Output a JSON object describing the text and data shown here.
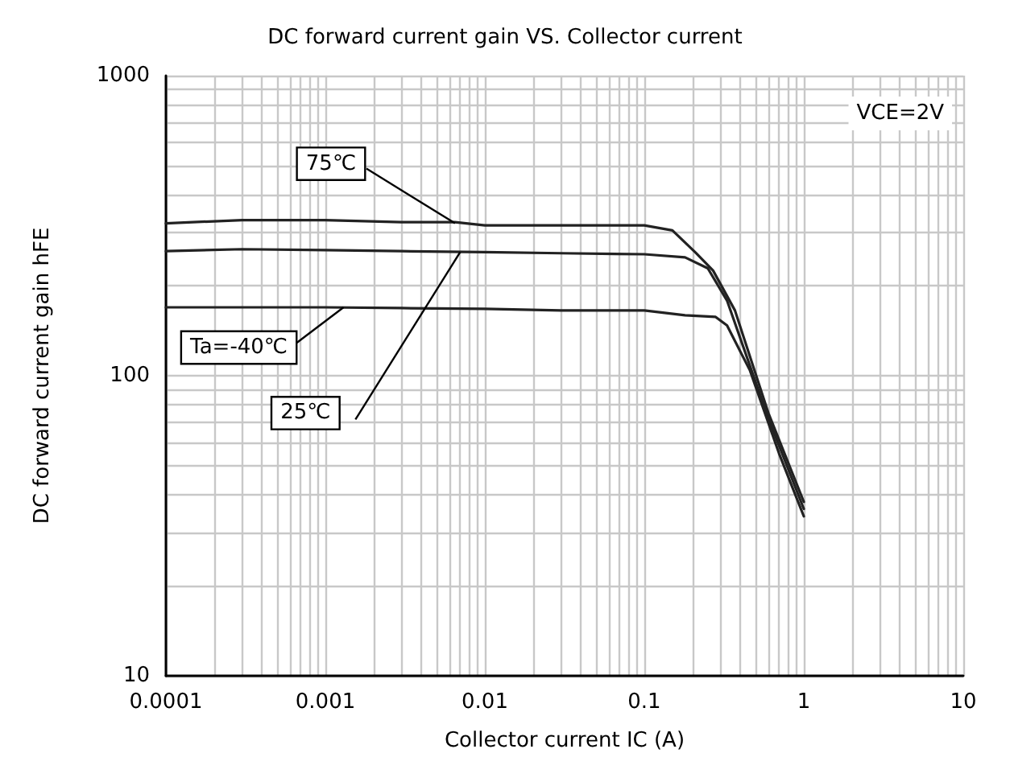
{
  "chart_data": {
    "type": "line",
    "title": "DC forward current gain VS. Collector current",
    "xlabel": "Collector current IC (A)",
    "ylabel": "DC forward current gain hFE",
    "log": "xy",
    "grid": true,
    "marker": "none",
    "line_style": "solid",
    "xlim": [
      0.0001,
      10
    ],
    "xticks": [
      0.0001,
      0.001,
      0.01,
      0.1,
      1,
      10
    ],
    "ylim": [
      10,
      1000
    ],
    "yticks": [
      10,
      100,
      1000
    ],
    "series": [
      {
        "color": "#222222",
        "x": [
          0.0001,
          0.0003,
          0.001,
          0.003,
          0.0065,
          0.01,
          0.03,
          0.1,
          0.15,
          0.21,
          0.27,
          0.37,
          0.6,
          1
        ],
        "values": [
          322,
          330,
          330,
          325,
          325,
          317,
          317,
          317,
          305,
          257,
          224,
          165,
          75,
          38
        ]
      },
      {
        "color": "#222222",
        "x": [
          0.0001,
          0.0003,
          0.001,
          0.003,
          0.01,
          0.03,
          0.1,
          0.18,
          0.25,
          0.33,
          0.6,
          1
        ],
        "values": [
          260,
          264,
          262,
          260,
          258,
          256,
          254,
          248,
          228,
          178,
          72,
          36
        ]
      },
      {
        "color": "#222222",
        "x": [
          0.0001,
          0.0003,
          0.001,
          0.003,
          0.01,
          0.03,
          0.1,
          0.18,
          0.28,
          0.33,
          0.46,
          0.7,
          1
        ],
        "values": [
          169,
          169,
          169,
          168,
          167,
          165,
          165,
          159,
          157,
          147,
          104,
          55,
          34
        ]
      }
    ],
    "annotations": [
      {
        "text": "75℃",
        "x": 0.0065,
        "y": 322
      },
      {
        "text": "25℃",
        "x": 0.007,
        "y": 258
      },
      {
        "text": "Ta=-40℃",
        "x": 0.0013,
        "y": 169
      },
      "VCE=2V"
    ]
  }
}
